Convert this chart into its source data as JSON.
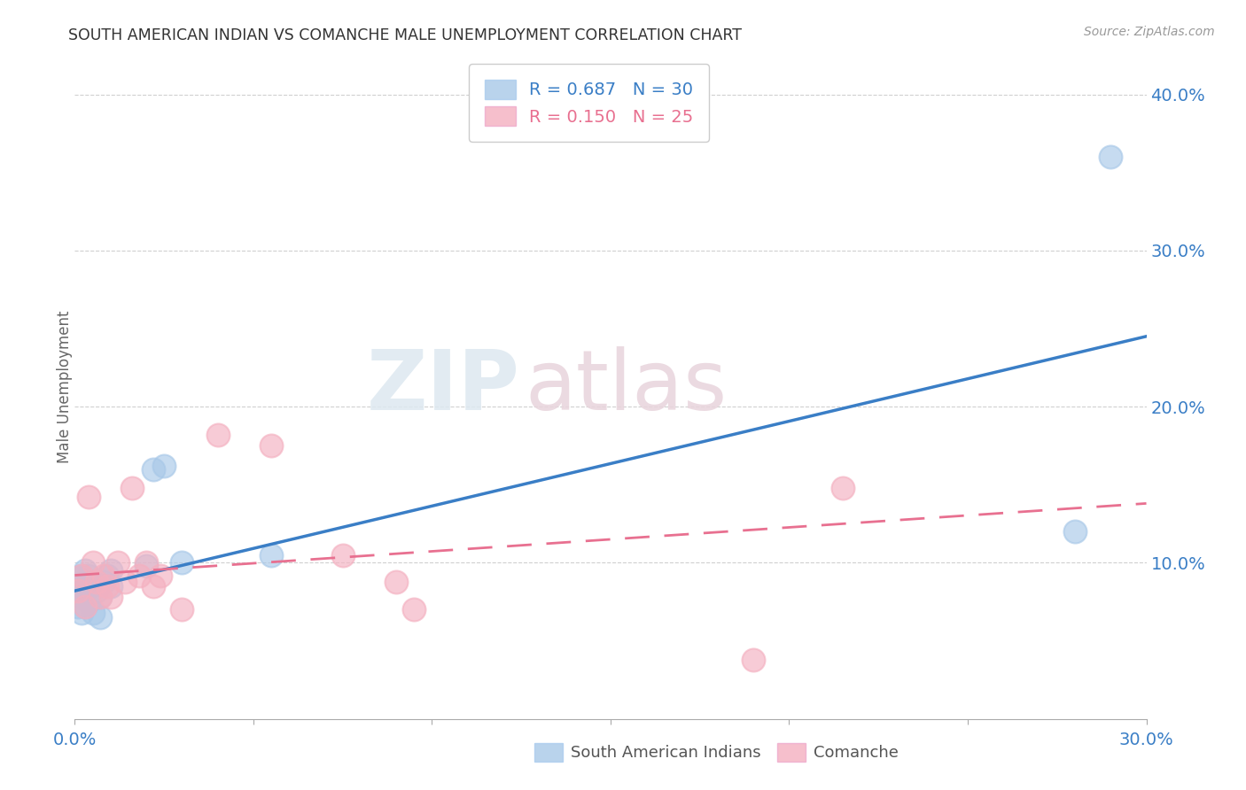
{
  "title": "SOUTH AMERICAN INDIAN VS COMANCHE MALE UNEMPLOYMENT CORRELATION CHART",
  "source": "Source: ZipAtlas.com",
  "ylabel": "Male Unemployment",
  "xlim": [
    0.0,
    0.3
  ],
  "ylim": [
    0.0,
    0.425
  ],
  "xticks": [
    0.0,
    0.05,
    0.1,
    0.15,
    0.2,
    0.25,
    0.3
  ],
  "xtick_labels": [
    "0.0%",
    "",
    "",
    "",
    "",
    "",
    "30.0%"
  ],
  "yticks_right": [
    0.1,
    0.2,
    0.3,
    0.4
  ],
  "blue_R": 0.687,
  "blue_N": 30,
  "pink_R": 0.15,
  "pink_N": 25,
  "blue_color": "#a8c8e8",
  "pink_color": "#f4b0c0",
  "blue_line_color": "#3a7ec6",
  "pink_line_color": "#e87090",
  "legend_label_blue": "South American Indians",
  "legend_label_pink": "Comanche",
  "watermark_zip": "ZIP",
  "watermark_atlas": "atlas",
  "blue_x": [
    0.001,
    0.001,
    0.001,
    0.002,
    0.002,
    0.002,
    0.002,
    0.003,
    0.003,
    0.003,
    0.003,
    0.004,
    0.004,
    0.004,
    0.005,
    0.005,
    0.006,
    0.007,
    0.007,
    0.008,
    0.009,
    0.01,
    0.01,
    0.02,
    0.022,
    0.025,
    0.03,
    0.055,
    0.28,
    0.29
  ],
  "blue_y": [
    0.072,
    0.082,
    0.09,
    0.068,
    0.078,
    0.085,
    0.092,
    0.072,
    0.082,
    0.088,
    0.095,
    0.075,
    0.085,
    0.092,
    0.068,
    0.088,
    0.082,
    0.065,
    0.078,
    0.088,
    0.092,
    0.085,
    0.095,
    0.098,
    0.16,
    0.162,
    0.1,
    0.105,
    0.12,
    0.36
  ],
  "pink_x": [
    0.001,
    0.002,
    0.003,
    0.004,
    0.005,
    0.006,
    0.007,
    0.008,
    0.009,
    0.01,
    0.012,
    0.014,
    0.016,
    0.018,
    0.02,
    0.022,
    0.024,
    0.03,
    0.04,
    0.055,
    0.075,
    0.09,
    0.095,
    0.19,
    0.215
  ],
  "pink_y": [
    0.082,
    0.092,
    0.072,
    0.142,
    0.1,
    0.088,
    0.078,
    0.092,
    0.085,
    0.078,
    0.1,
    0.088,
    0.148,
    0.092,
    0.1,
    0.085,
    0.092,
    0.07,
    0.182,
    0.175,
    0.105,
    0.088,
    0.07,
    0.038,
    0.148
  ],
  "blue_line_x0": 0.0,
  "blue_line_y0": 0.082,
  "blue_line_x1": 0.3,
  "blue_line_y1": 0.245,
  "pink_line_x0": 0.0,
  "pink_line_y0": 0.092,
  "pink_line_x1": 0.3,
  "pink_line_y1": 0.138,
  "background_color": "#ffffff",
  "grid_color": "#d0d0d0"
}
